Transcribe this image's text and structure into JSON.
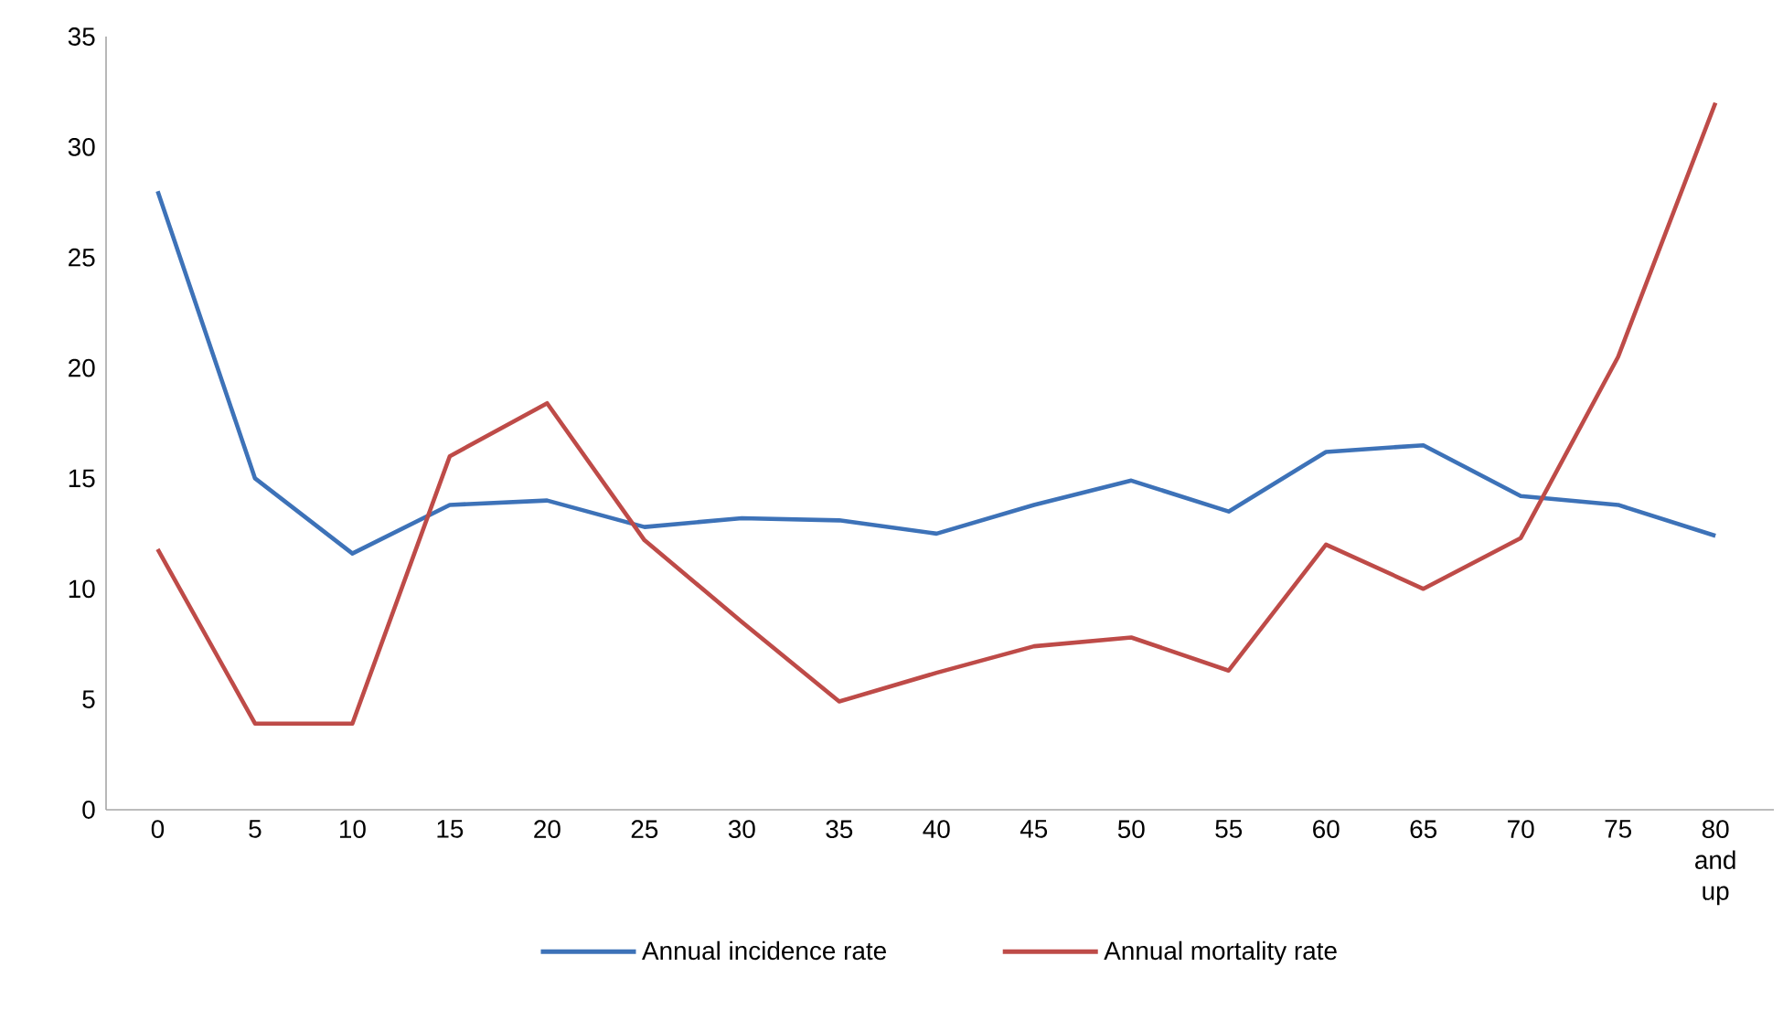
{
  "chart_data": {
    "type": "line",
    "categories": [
      "0",
      "5",
      "10",
      "15",
      "20",
      "25",
      "30",
      "35",
      "40",
      "45",
      "50",
      "55",
      "60",
      "65",
      "70",
      "75",
      "80 and up"
    ],
    "series": [
      {
        "name": "Annual incidence rate",
        "color": "#3d72b8",
        "values": [
          28,
          15.0,
          11.6,
          13.8,
          14.0,
          12.8,
          13.2,
          13.1,
          12.5,
          13.8,
          14.9,
          13.5,
          16.2,
          16.5,
          14.2,
          13.8,
          12.4
        ]
      },
      {
        "name": "Annual mortality rate",
        "color": "#be4b48",
        "values": [
          11.8,
          3.9,
          3.9,
          16.0,
          18.4,
          12.2,
          8.5,
          4.9,
          6.2,
          7.4,
          7.8,
          6.3,
          12.0,
          10.0,
          12.3,
          20.5,
          32.0
        ]
      }
    ],
    "ylim": [
      0,
      35
    ],
    "yticks": [
      0,
      5,
      10,
      15,
      20,
      25,
      30,
      35
    ],
    "legend": "bottom",
    "grid": false,
    "marker": "none",
    "line_style": "solid"
  }
}
